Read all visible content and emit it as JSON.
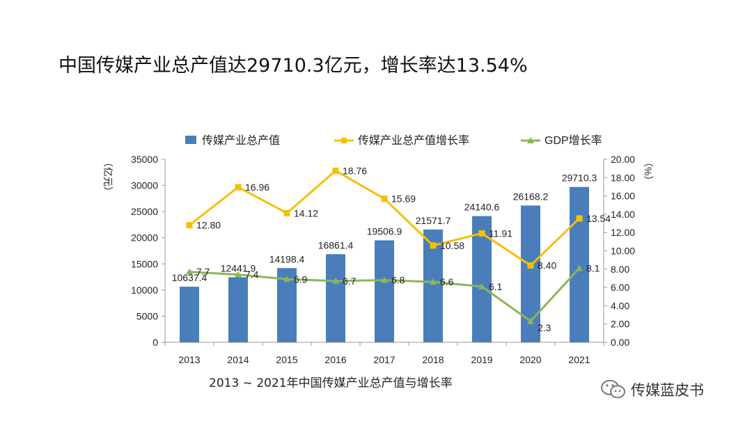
{
  "title": "中国传媒产业总产值达29710.3亿元，增长率达13.54%",
  "caption": "2013 ~ 2021年中国传媒产业总产值与增长率",
  "brand": {
    "name": "传媒蓝皮书",
    "icon": "wechat-icon"
  },
  "chart_data": {
    "type": "bar",
    "categories": [
      "2013",
      "2014",
      "2015",
      "2016",
      "2017",
      "2018",
      "2019",
      "2020",
      "2021"
    ],
    "series": [
      {
        "name": "传媒产业总产值",
        "type": "bar",
        "axis": "left",
        "color": "#4a7ebb",
        "values": [
          10637.4,
          12441.9,
          14198.4,
          16861.4,
          19506.9,
          21571.7,
          24140.6,
          26168.2,
          29710.3
        ],
        "labels": [
          "10637.4",
          "12441.9",
          "14198.4",
          "16861.4",
          "19506.9",
          "21571.7",
          "24140.6",
          "26168.2",
          "29710.3"
        ]
      },
      {
        "name": "传媒产业总产值增长率",
        "type": "line",
        "axis": "right",
        "color": "#f5c000",
        "values": [
          12.8,
          16.96,
          14.12,
          18.76,
          15.69,
          10.58,
          11.91,
          8.4,
          13.54
        ],
        "labels": [
          "12.80",
          "16.96",
          "14.12",
          "18.76",
          "15.69",
          "10.58",
          "11.91",
          "8.40",
          "13.54"
        ]
      },
      {
        "name": "GDP增长率",
        "type": "line",
        "axis": "right",
        "color": "#8db45a",
        "values": [
          7.7,
          7.4,
          6.9,
          6.7,
          6.8,
          6.6,
          6.1,
          2.3,
          8.1
        ],
        "labels": [
          "7.7",
          "7.4",
          "6.9",
          "6.7",
          "6.8",
          "6.6",
          "6.1",
          "2.3",
          "8.1"
        ]
      }
    ],
    "y_left": {
      "unit": "（亿元）",
      "range": [
        0,
        35000
      ],
      "ticks": [
        "0",
        "5000",
        "10000",
        "15000",
        "20000",
        "25000",
        "30000",
        "35000"
      ]
    },
    "y_right": {
      "unit": "（%）",
      "range": [
        0,
        20
      ],
      "ticks": [
        "0.00",
        "2.00",
        "4.00",
        "6.00",
        "8.00",
        "10.00",
        "12.00",
        "14.00",
        "16.00",
        "18.00",
        "20.00"
      ]
    },
    "grid": false,
    "legend": "top"
  }
}
